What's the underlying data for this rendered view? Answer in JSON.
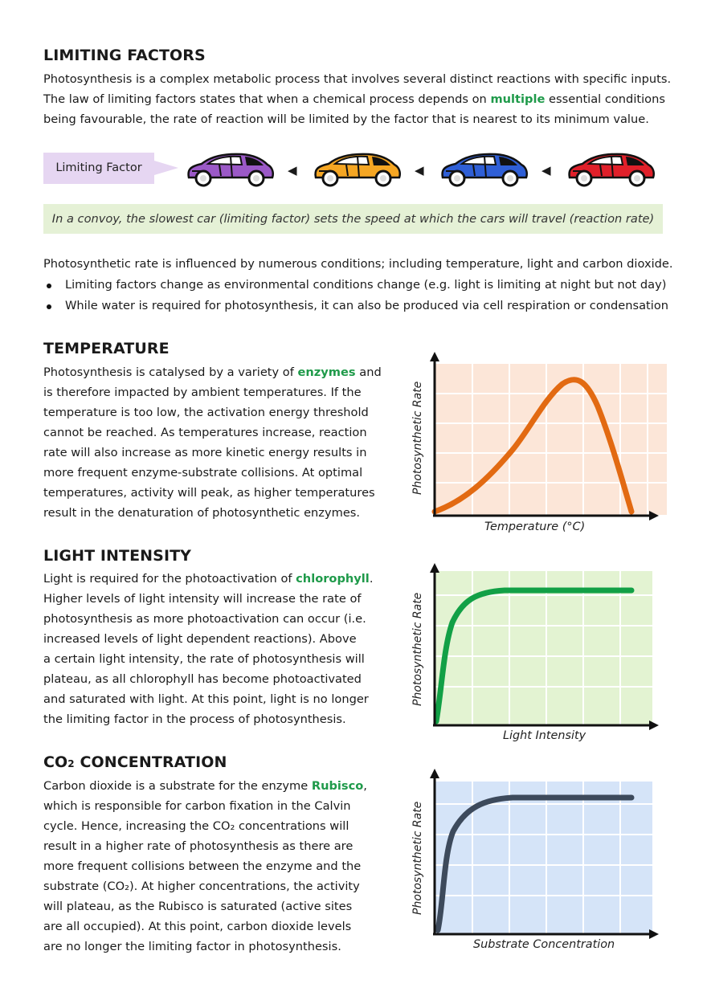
{
  "limiting": {
    "heading": "LIMITING FACTORS",
    "p1": "Photosynthesis is a complex metabolic process that involves several distinct reactions with specific inputs.",
    "p2a": "The law of limiting factors states that when a chemical process depends on ",
    "p2g": "multiple",
    "p2b": " essential conditions",
    "p3": "being favourable, the rate of reaction will be limited by the factor that is nearest to its minimum value.",
    "badge": "Limiting Factor",
    "convoy": "In a convoy, the slowest car (limiting factor) sets the speed at which the cars will travel (reaction rate)",
    "intro": "Photosynthetic rate is influenced by numerous conditions; including temperature, light and carbon dioxide.",
    "bullets": [
      "Limiting factors change as environmental conditions change (e.g. light is limiting at night but not day)",
      "While water is required for photosynthesis, it can also be produced via cell respiration or condensation"
    ],
    "car_colors": [
      "#9b59c7",
      "#f5a623",
      "#2f5fd6",
      "#e0202a"
    ]
  },
  "temperature": {
    "heading": "TEMPERATURE",
    "l1a": "Photosynthesis is catalysed by a variety of ",
    "l1g": "enzymes",
    "l1b": " and",
    "l2": "is therefore impacted by ambient temperatures. If the",
    "l3": "temperature is too low, the activation energy threshold",
    "l4": "cannot be reached. As temperatures increase, reaction",
    "l5": "rate will also increase as more kinetic energy results in",
    "l6": "more frequent enzyme-substrate collisions. At optimal",
    "l7": "temperatures, activity will peak, as higher temperatures",
    "l8": "result in the denaturation of photosynthetic enzymes.",
    "ylabel": "Photosynthetic Rate",
    "xlabel": "Temperature (°C)",
    "bg": "#fce6d8",
    "line": "#e26a12"
  },
  "light": {
    "heading": "LIGHT INTENSITY",
    "l1a": "Light is required for the photoactivation of ",
    "l1g": "chlorophyll",
    "l1b": ".",
    "l2": "Higher levels of light intensity will increase the rate of",
    "l3": "photosynthesis as more photoactivation can occur (i.e.",
    "l4": "increased levels of light dependent reactions). Above",
    "l5": "a certain light intensity, the rate of photosynthesis will",
    "l6": "plateau, as all chlorophyll has become photoactivated",
    "l7": "and saturated with light. At this point, light is no longer",
    "l8": "the limiting factor in the process of photosynthesis.",
    "ylabel": "Photosynthetic Rate",
    "xlabel": "Light Intensity",
    "bg": "#e3f3d2",
    "line": "#12a046"
  },
  "co2": {
    "heading_a": "CO",
    "heading_sub": "2",
    "heading_b": " CONCENTRATION",
    "l1a": "Carbon dioxide is a substrate for the enzyme ",
    "l1g": "Rubisco",
    "l1b": ",",
    "l2": "which is responsible for carbon fixation in the Calvin",
    "l3": "cycle. Hence, increasing the CO₂ concentrations will",
    "l4": "result in a higher rate of photosynthesis as there are",
    "l5": "more frequent collisions between the enzyme and the",
    "l6": "substrate (CO₂). At higher concentrations, the activity",
    "l7": "will plateau, as the Rubisco is saturated (active sites",
    "l8": "are all occupied). At this point, carbon dioxide levels",
    "l9": "are no longer the limiting factor in photosynthesis.",
    "ylabel": "Photosynthetic Rate",
    "xlabel": "Substrate Concentration",
    "bg": "#d5e4f8",
    "line": "#3d4a5c"
  }
}
